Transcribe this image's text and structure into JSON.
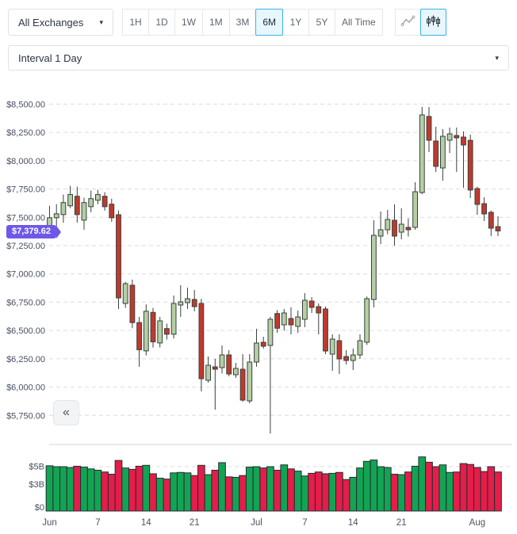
{
  "toolbar": {
    "exchange_selector": {
      "label": "All Exchanges",
      "caret": "▾"
    },
    "ranges": [
      "1H",
      "1D",
      "1W",
      "1M",
      "3M",
      "6M",
      "1Y",
      "5Y",
      "All Time"
    ],
    "active_range": "6M",
    "chart_type_buttons": [
      "line",
      "candlestick"
    ],
    "active_chart_type": "candlestick"
  },
  "interval_selector": {
    "label": "Interval 1 Day",
    "caret": "▾"
  },
  "price_badge": {
    "text": "$7,379.62"
  },
  "collapse_button": {
    "glyph": "«"
  },
  "colors": {
    "candle_up_fill": "#b5cfa4",
    "candle_down_fill": "#c1392c",
    "candle_stroke": "#39413c",
    "volume_up": "#13a453",
    "volume_down": "#e41d49",
    "volume_stroke": "#272c34",
    "badge": "#6f58e8",
    "active_border": "#3ab3e8",
    "active_bg": "#e8f6fd",
    "gridline": "#d9dce2",
    "separator": "#cfd3d9",
    "axis_text": "#474f60"
  },
  "chart_data": {
    "type": "candlestick",
    "title": "",
    "legend_position": "none",
    "grid": "dashed-horizontal",
    "current_price": 7379.62,
    "price_axis": {
      "min": 5750,
      "max": 8500,
      "step": 250,
      "labels": [
        {
          "text": "$8,500.00",
          "value": 8500
        },
        {
          "text": "$8,250.00",
          "value": 8250
        },
        {
          "text": "$8,000.00",
          "value": 8000
        },
        {
          "text": "$7,750.00",
          "value": 7750
        },
        {
          "text": "$7,500.00",
          "value": 7500
        },
        {
          "text": "$7,250.00",
          "value": 7250
        },
        {
          "text": "$7,000.00",
          "value": 7000
        },
        {
          "text": "$6,750.00",
          "value": 6750
        },
        {
          "text": "$6,500.00",
          "value": 6500
        },
        {
          "text": "$6,250.00",
          "value": 6250
        },
        {
          "text": "$6,000.00",
          "value": 6000
        },
        {
          "text": "$5,750.00",
          "value": 5750
        }
      ]
    },
    "volume_axis": {
      "labels": [
        {
          "text": "$5B",
          "value": 5
        },
        {
          "text": "$3B",
          "value": 3
        },
        {
          "text": "$0",
          "value": 0
        }
      ]
    },
    "x_ticks": [
      {
        "label": "Jun",
        "index": 0
      },
      {
        "label": "7",
        "index": 7
      },
      {
        "label": "14",
        "index": 14
      },
      {
        "label": "21",
        "index": 21
      },
      {
        "label": "Jul",
        "index": 30
      },
      {
        "label": "7",
        "index": 37
      },
      {
        "label": "14",
        "index": 44
      },
      {
        "label": "21",
        "index": 51
      },
      {
        "label": "Aug",
        "index": 62
      }
    ],
    "candles_ohlc": [
      [
        7383,
        7602,
        7347,
        7496
      ],
      [
        7496,
        7616,
        7418,
        7531
      ],
      [
        7524,
        7701,
        7453,
        7630
      ],
      [
        7602,
        7778,
        7581,
        7701
      ],
      [
        7686,
        7771,
        7453,
        7524
      ],
      [
        7475,
        7673,
        7390,
        7630
      ],
      [
        7594,
        7736,
        7545,
        7665
      ],
      [
        7651,
        7743,
        7616,
        7701
      ],
      [
        7686,
        7722,
        7559,
        7594
      ],
      [
        7616,
        7665,
        7460,
        7496
      ],
      [
        7523,
        7560,
        6690,
        6788
      ],
      [
        6739,
        6930,
        6700,
        6914
      ],
      [
        6900,
        6950,
        6520,
        6570
      ],
      [
        6570,
        6620,
        6180,
        6330
      ],
      [
        6320,
        6730,
        6280,
        6670
      ],
      [
        6660,
        6700,
        6350,
        6400
      ],
      [
        6390,
        6620,
        6350,
        6585
      ],
      [
        6517,
        6560,
        6420,
        6467
      ],
      [
        6467,
        6809,
        6430,
        6739
      ],
      [
        6725,
        6900,
        6620,
        6753
      ],
      [
        6746,
        6879,
        6690,
        6781
      ],
      [
        6774,
        6858,
        6669,
        6711
      ],
      [
        6739,
        6780,
        5962,
        6074
      ],
      [
        6060,
        6270,
        6039,
        6193
      ],
      [
        6179,
        6249,
        5801,
        6158
      ],
      [
        6172,
        6368,
        6120,
        6284
      ],
      [
        6284,
        6326,
        6095,
        6116
      ],
      [
        6109,
        6214,
        6081,
        6165
      ],
      [
        6158,
        6291,
        5871,
        5885
      ],
      [
        5878,
        6291,
        5857,
        6221
      ],
      [
        6221,
        6515,
        6180,
        6389
      ],
      [
        6396,
        6445,
        6340,
        6361
      ],
      [
        6368,
        6620,
        5590,
        6599
      ],
      [
        6650,
        6680,
        6480,
        6520
      ],
      [
        6550,
        6690,
        6500,
        6655
      ],
      [
        6606,
        6704,
        6466,
        6550
      ],
      [
        6536,
        6676,
        6480,
        6620
      ],
      [
        6599,
        6830,
        6529,
        6767
      ],
      [
        6760,
        6795,
        6655,
        6704
      ],
      [
        6711,
        6739,
        6466,
        6655
      ],
      [
        6690,
        6711,
        6291,
        6319
      ],
      [
        6291,
        6466,
        6144,
        6424
      ],
      [
        6410,
        6466,
        6116,
        6249
      ],
      [
        6270,
        6326,
        6200,
        6235
      ],
      [
        6235,
        6340,
        6151,
        6284
      ],
      [
        6284,
        6466,
        6250,
        6410
      ],
      [
        6396,
        6800,
        6372,
        6781
      ],
      [
        6774,
        7474,
        6704,
        7341
      ],
      [
        7334,
        7551,
        7264,
        7390
      ],
      [
        7390,
        7565,
        7350,
        7481
      ],
      [
        7474,
        7614,
        7250,
        7334
      ],
      [
        7369,
        7579,
        7306,
        7439
      ],
      [
        7411,
        7490,
        7330,
        7390
      ],
      [
        7411,
        7810,
        7390,
        7726
      ],
      [
        7719,
        8475,
        7705,
        8405
      ],
      [
        8391,
        8475,
        8076,
        8181
      ],
      [
        8174,
        8300,
        7901,
        7950
      ],
      [
        7936,
        8279,
        7824,
        8216
      ],
      [
        8181,
        8293,
        8069,
        8237
      ],
      [
        8223,
        8293,
        7901,
        8202
      ],
      [
        8209,
        8260,
        7761,
        8139
      ],
      [
        8180,
        8230,
        7670,
        7741
      ],
      [
        7754,
        7770,
        7523,
        7614
      ],
      [
        7621,
        7677,
        7467,
        7530
      ],
      [
        7544,
        7560,
        7334,
        7404
      ],
      [
        7418,
        7509,
        7334,
        7380
      ]
    ],
    "volumes_billions": [
      5.1,
      5.0,
      5.0,
      4.9,
      5.05,
      4.95,
      4.75,
      4.6,
      4.4,
      4.15,
      5.7,
      4.85,
      4.7,
      5.05,
      5.15,
      4.2,
      3.7,
      3.6,
      4.3,
      4.35,
      4.3,
      4.0,
      5.15,
      4.1,
      4.6,
      5.45,
      3.85,
      3.8,
      4.0,
      4.95,
      5.0,
      4.85,
      5.0,
      4.6,
      5.2,
      4.75,
      4.5,
      3.95,
      4.25,
      4.4,
      4.2,
      4.25,
      4.35,
      3.55,
      3.8,
      4.85,
      5.6,
      5.75,
      5.0,
      4.9,
      4.15,
      4.1,
      4.4,
      5.05,
      6.1,
      5.5,
      5.0,
      5.2,
      4.35,
      4.4,
      5.35,
      5.25,
      4.9,
      4.45,
      5.0,
      4.4
    ]
  }
}
